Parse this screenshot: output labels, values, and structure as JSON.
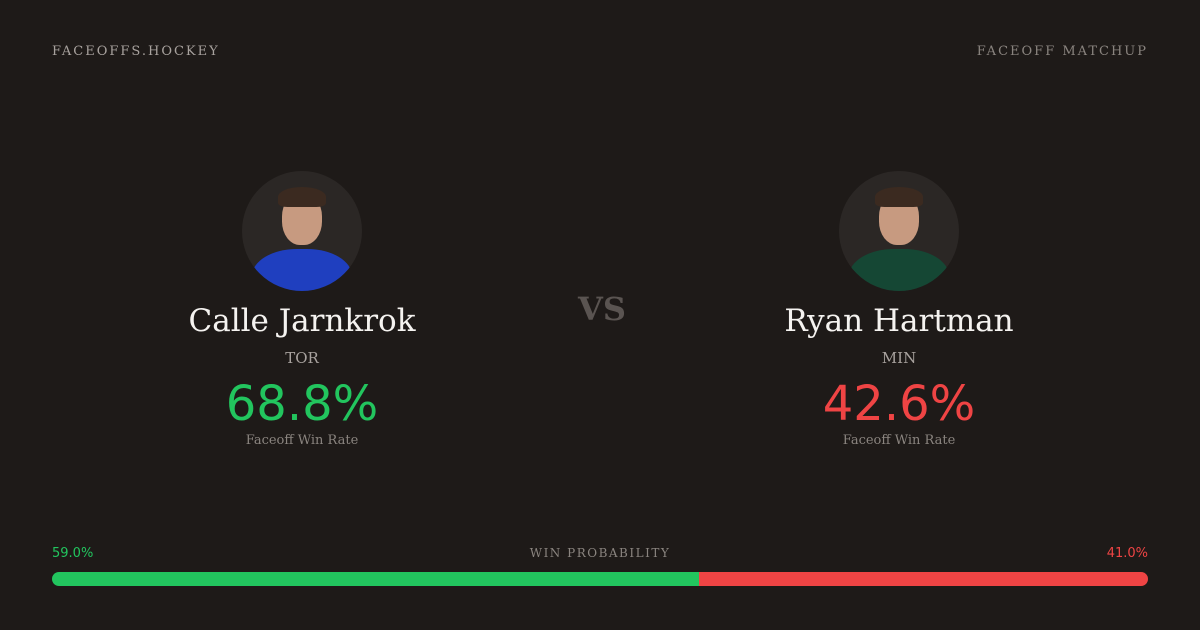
{
  "header": {
    "brand": "FACEOFFS.HOCKEY",
    "label": "FACEOFF MATCHUP"
  },
  "vs": "VS",
  "players": [
    {
      "name": "Calle Jarnkrok",
      "team": "TOR",
      "rate": "68.8%",
      "rate_label": "Faceoff Win Rate",
      "rate_color": "#22c55e",
      "jersey_color": "#1f3fbf"
    },
    {
      "name": "Ryan Hartman",
      "team": "MIN",
      "rate": "42.6%",
      "rate_label": "Faceoff Win Rate",
      "rate_color": "#ef4444",
      "jersey_color": "#154734"
    }
  ],
  "win_probability": {
    "title": "WIN PROBABILITY",
    "left_label": "59.0%",
    "right_label": "41.0%",
    "left_value": 59.0,
    "right_value": 41.0,
    "left_color": "#22c55e",
    "right_color": "#ef4444"
  }
}
